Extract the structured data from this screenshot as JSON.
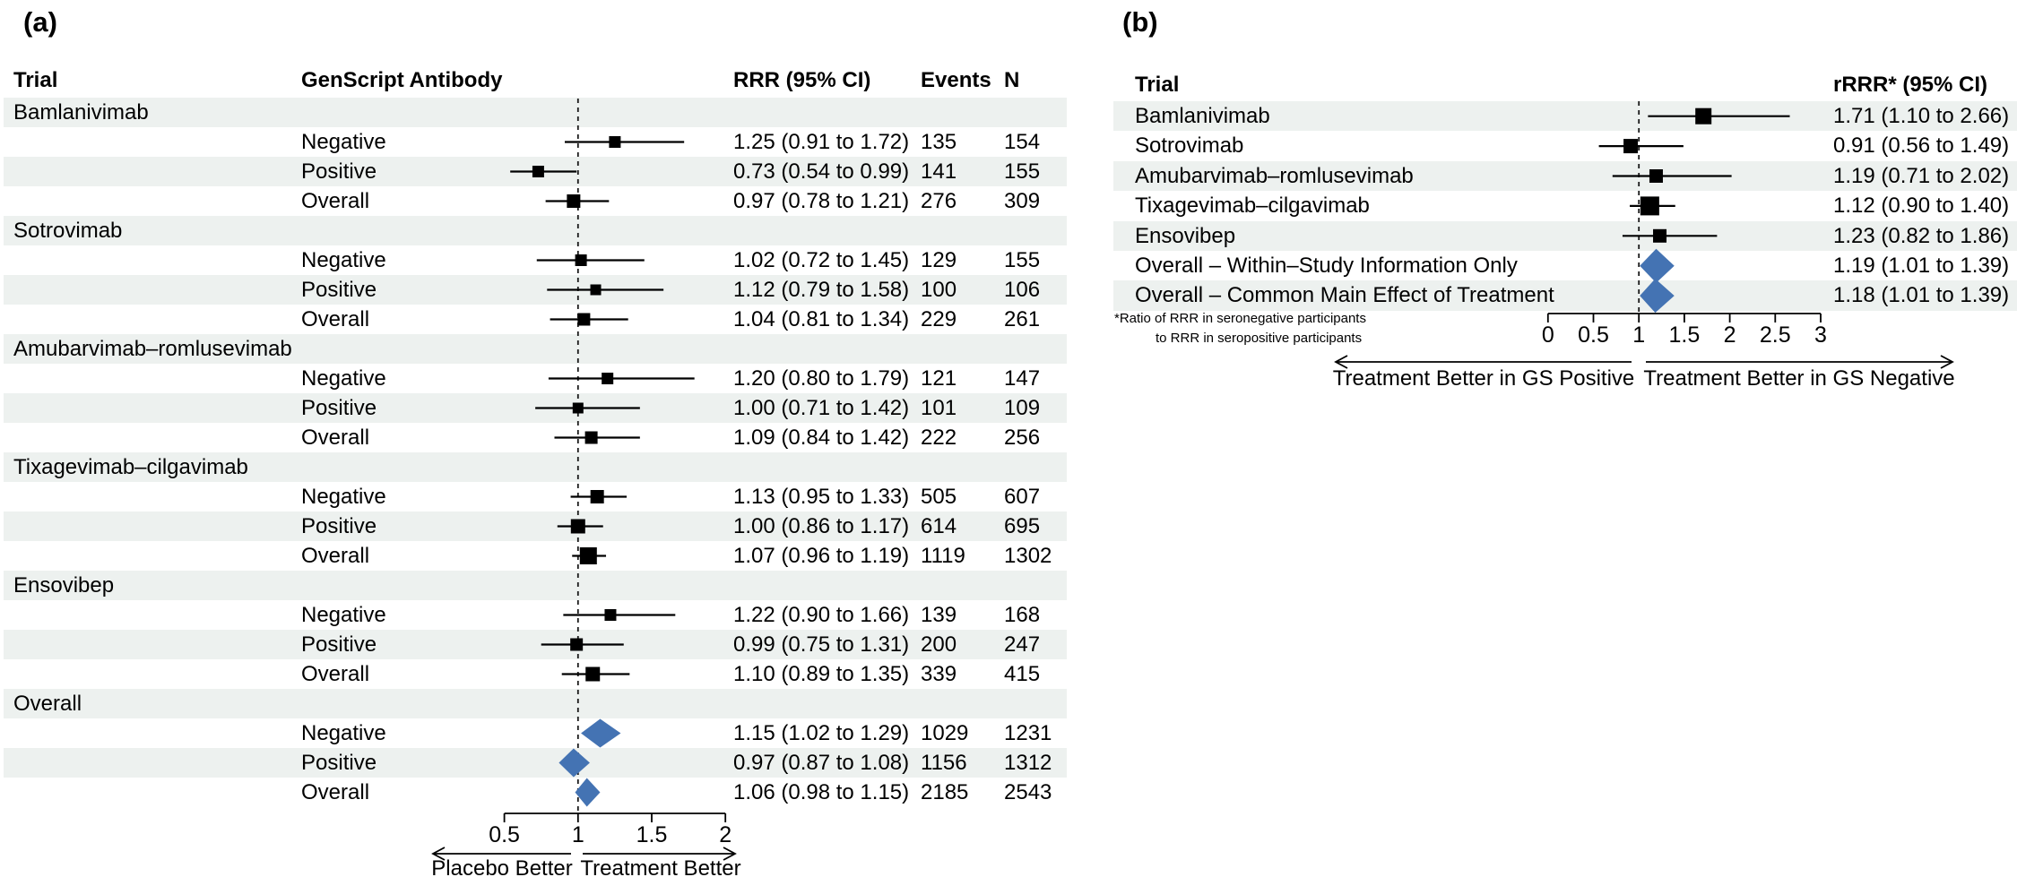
{
  "figure": {
    "panel_a_label": "(a)",
    "panel_b_label": "(b)"
  },
  "colors": {
    "band": "#edf1ef",
    "marker_black": "#000000",
    "summary_blue": "#4473b3",
    "line": "#000000",
    "ref_line": "#1a1a1a"
  },
  "chart_data": [
    {
      "type": "forest",
      "panel": "a",
      "columns": {
        "trial": "Trial",
        "antibody": "GenScript Antibody",
        "rrr": "RRR (95% CI)",
        "events": "Events",
        "n": "N"
      },
      "axis": {
        "range": [
          0.5,
          2
        ],
        "tick_values": [
          0.5,
          1,
          1.5,
          2
        ],
        "tick_labels": [
          "0.5",
          "1",
          "1.5",
          "2"
        ],
        "ref_line": 1,
        "grid": false
      },
      "direction_labels": {
        "left": "Placebo Better",
        "right": "Treatment Better"
      },
      "rows": [
        {
          "kind": "group",
          "trial": "Bamlanivimab"
        },
        {
          "kind": "estimate",
          "antibody": "Negative",
          "marker": "square",
          "est": 1.25,
          "lo": 0.91,
          "hi": 1.72,
          "ci_text": "1.25 (0.91 to 1.72)",
          "events": "135",
          "n": "154",
          "size": 13
        },
        {
          "kind": "estimate",
          "antibody": "Positive",
          "marker": "square",
          "est": 0.73,
          "lo": 0.54,
          "hi": 0.99,
          "ci_text": "0.73 (0.54 to 0.99)",
          "events": "141",
          "n": "155",
          "size": 13
        },
        {
          "kind": "estimate",
          "antibody": "Overall",
          "marker": "square",
          "est": 0.97,
          "lo": 0.78,
          "hi": 1.21,
          "ci_text": "0.97 (0.78 to 1.21)",
          "events": "276",
          "n": "309",
          "size": 15
        },
        {
          "kind": "group",
          "trial": "Sotrovimab"
        },
        {
          "kind": "estimate",
          "antibody": "Negative",
          "marker": "square",
          "est": 1.02,
          "lo": 0.72,
          "hi": 1.45,
          "ci_text": "1.02 (0.72 to 1.45)",
          "events": "129",
          "n": "155",
          "size": 13
        },
        {
          "kind": "estimate",
          "antibody": "Positive",
          "marker": "square",
          "est": 1.12,
          "lo": 0.79,
          "hi": 1.58,
          "ci_text": "1.12 (0.79 to 1.58)",
          "events": "100",
          "n": "106",
          "size": 12
        },
        {
          "kind": "estimate",
          "antibody": "Overall",
          "marker": "square",
          "est": 1.04,
          "lo": 0.81,
          "hi": 1.34,
          "ci_text": "1.04 (0.81 to 1.34)",
          "events": "229",
          "n": "261",
          "size": 14
        },
        {
          "kind": "group",
          "trial": "Amubarvimab–romlusevimab"
        },
        {
          "kind": "estimate",
          "antibody": "Negative",
          "marker": "square",
          "est": 1.2,
          "lo": 0.8,
          "hi": 1.79,
          "ci_text": "1.20 (0.80 to 1.79)",
          "events": "121",
          "n": "147",
          "size": 13
        },
        {
          "kind": "estimate",
          "antibody": "Positive",
          "marker": "square",
          "est": 1.0,
          "lo": 0.71,
          "hi": 1.42,
          "ci_text": "1.00 (0.71 to 1.42)",
          "events": "101",
          "n": "109",
          "size": 12
        },
        {
          "kind": "estimate",
          "antibody": "Overall",
          "marker": "square",
          "est": 1.09,
          "lo": 0.84,
          "hi": 1.42,
          "ci_text": "1.09 (0.84 to 1.42)",
          "events": "222",
          "n": "256",
          "size": 14
        },
        {
          "kind": "group",
          "trial": "Tixagevimab–cilgavimab"
        },
        {
          "kind": "estimate",
          "antibody": "Negative",
          "marker": "square",
          "est": 1.13,
          "lo": 0.95,
          "hi": 1.33,
          "ci_text": "1.13 (0.95 to 1.33)",
          "events": "505",
          "n": "607",
          "size": 15
        },
        {
          "kind": "estimate",
          "antibody": "Positive",
          "marker": "square",
          "est": 1.0,
          "lo": 0.86,
          "hi": 1.17,
          "ci_text": "1.00 (0.86 to 1.17)",
          "events": "614",
          "n": "695",
          "size": 16
        },
        {
          "kind": "estimate",
          "antibody": "Overall",
          "marker": "square",
          "est": 1.07,
          "lo": 0.96,
          "hi": 1.19,
          "ci_text": "1.07 (0.96 to 1.19)",
          "events": "1119",
          "n": "1302",
          "size": 19
        },
        {
          "kind": "group",
          "trial": "Ensovibep"
        },
        {
          "kind": "estimate",
          "antibody": "Negative",
          "marker": "square",
          "est": 1.22,
          "lo": 0.9,
          "hi": 1.66,
          "ci_text": "1.22 (0.90 to 1.66)",
          "events": "139",
          "n": "168",
          "size": 13
        },
        {
          "kind": "estimate",
          "antibody": "Positive",
          "marker": "square",
          "est": 0.99,
          "lo": 0.75,
          "hi": 1.31,
          "ci_text": "0.99 (0.75 to 1.31)",
          "events": "200",
          "n": "247",
          "size": 14
        },
        {
          "kind": "estimate",
          "antibody": "Overall",
          "marker": "square",
          "est": 1.1,
          "lo": 0.89,
          "hi": 1.35,
          "ci_text": "1.10 (0.89 to 1.35)",
          "events": "339",
          "n": "415",
          "size": 16
        },
        {
          "kind": "group",
          "trial": "Overall"
        },
        {
          "kind": "estimate",
          "antibody": "Negative",
          "marker": "diamond",
          "est": 1.15,
          "lo": 1.02,
          "hi": 1.29,
          "ci_text": "1.15 (1.02 to 1.29)",
          "events": "1029",
          "n": "1231"
        },
        {
          "kind": "estimate",
          "antibody": "Positive",
          "marker": "diamond",
          "est": 0.97,
          "lo": 0.87,
          "hi": 1.08,
          "ci_text": "0.97 (0.87 to 1.08)",
          "events": "1156",
          "n": "1312"
        },
        {
          "kind": "estimate",
          "antibody": "Overall",
          "marker": "diamond",
          "est": 1.06,
          "lo": 0.98,
          "hi": 1.15,
          "ci_text": "1.06 (0.98 to 1.15)",
          "events": "2185",
          "n": "2543"
        }
      ]
    },
    {
      "type": "forest",
      "panel": "b",
      "columns": {
        "trial": "Trial",
        "value": "rRRR* (95% CI)"
      },
      "axis": {
        "range": [
          0,
          3
        ],
        "tick_values": [
          0,
          0.5,
          1,
          1.5,
          2,
          2.5,
          3
        ],
        "tick_labels": [
          "0",
          "0.5",
          "1",
          "1.5",
          "2",
          "2.5",
          "3"
        ],
        "ref_line": 1,
        "grid": false
      },
      "direction_labels": {
        "left": "Treatment Better in GS Positive",
        "right": "Treatment Better in GS Negative"
      },
      "footnote": [
        "*Ratio of RRR in seronegative participants",
        "to RRR in seropositive participants"
      ],
      "rows": [
        {
          "kind": "estimate",
          "trial": "Bamlanivimab",
          "marker": "square",
          "est": 1.71,
          "lo": 1.1,
          "hi": 2.66,
          "ci_text": "1.71 (1.10 to 2.66)",
          "size": 18
        },
        {
          "kind": "estimate",
          "trial": "Sotrovimab",
          "marker": "square",
          "est": 0.91,
          "lo": 0.56,
          "hi": 1.49,
          "ci_text": "0.91 (0.56 to 1.49)",
          "size": 16
        },
        {
          "kind": "estimate",
          "trial": "Amubarvimab–romlusevimab",
          "marker": "square",
          "est": 1.19,
          "lo": 0.71,
          "hi": 2.02,
          "ci_text": "1.19 (0.71 to 2.02)",
          "size": 15
        },
        {
          "kind": "estimate",
          "trial": "Tixagevimab–cilgavimab",
          "marker": "square",
          "est": 1.12,
          "lo": 0.9,
          "hi": 1.4,
          "ci_text": "1.12 (0.90 to 1.40)",
          "size": 21
        },
        {
          "kind": "estimate",
          "trial": "Ensovibep",
          "marker": "square",
          "est": 1.23,
          "lo": 0.82,
          "hi": 1.86,
          "ci_text": "1.23 (0.82 to 1.86)",
          "size": 15
        },
        {
          "kind": "estimate",
          "trial": "Overall – Within–Study Information Only",
          "marker": "diamond",
          "est": 1.19,
          "lo": 1.01,
          "hi": 1.39,
          "ci_text": "1.19 (1.01 to 1.39)"
        },
        {
          "kind": "estimate",
          "trial": "Overall – Common Main Effect of Treatment",
          "marker": "diamond",
          "est": 1.18,
          "lo": 1.01,
          "hi": 1.39,
          "ci_text": "1.18 (1.01 to 1.39)"
        }
      ]
    }
  ]
}
